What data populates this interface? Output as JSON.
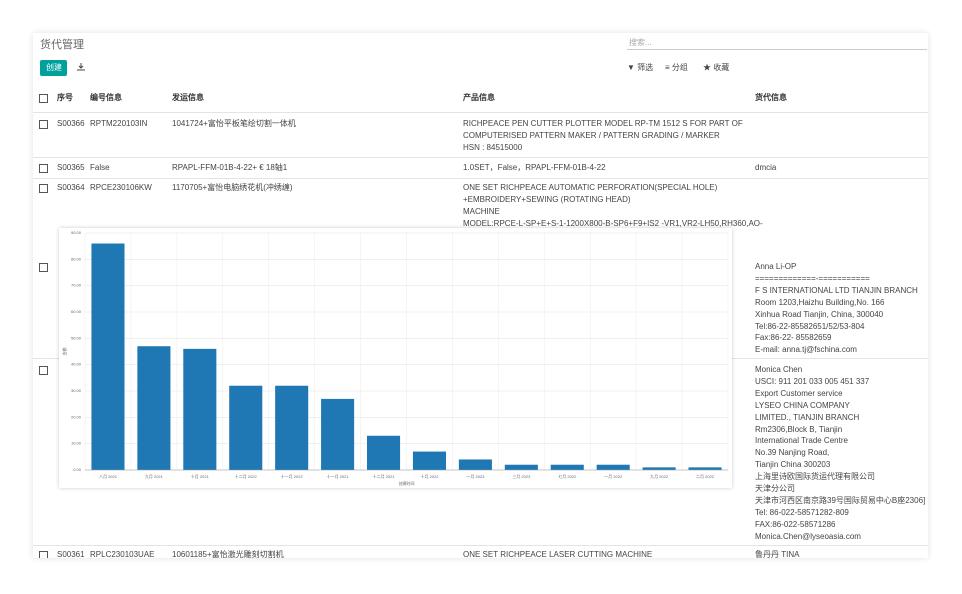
{
  "header": {
    "title": "货代管理",
    "search_placeholder": "搜索...",
    "create": "创建",
    "filter": "筛选",
    "group": "分组",
    "favorite": "收藏"
  },
  "table": {
    "columns": [
      "序号",
      "编号信息",
      "发运信息",
      "产品信息",
      "货代信息"
    ],
    "rows": [
      {
        "seq": "S00366",
        "code": "RPTM220103IN",
        "shipping": "1041724+富怡平板笔绘切割一体机",
        "product": [
          "RICHPEACE PEN CUTTER PLOTTER MODEL RP-TM 1512 S FOR PART OF",
          "COMPUTERISED PATTERN MAKER / PATTERN GRADING / MARKER",
          "HSN : 84515000"
        ],
        "forwarder": []
      },
      {
        "seq": "S00365",
        "code": "False",
        "shipping": "RPAPL-FFM-01B-4-22+ € 18轴1",
        "product": [
          "1.0SET，False，RPAPL-FFM-01B-4-22"
        ],
        "forwarder": [
          "dmcia"
        ]
      },
      {
        "seq": "S00364",
        "code": "RPCE230106KW",
        "shipping": "1170705+富怡电脑绣花机(冲绣缠)",
        "product": [
          "ONE SET RICHPEACE AUTOMATIC PERFORATION(SPECIAL HOLE)",
          "+EMBROIDERY+SEWING (ROTATING HEAD)",
          "MACHINE",
          "MODEL:RPCE-L-SP+E+S-1-1200X800-B-SP6+F9+IS2 -VR1,VR2-LH50,RH360,AO-"
        ],
        "forwarder": []
      },
      {
        "seq": "",
        "code": "",
        "shipping": "",
        "product": [],
        "forwarder": [
          "Anna Li-OP",
          "=============-===========",
          "F S INTERNATIONAL LTD TIANJIN BRANCH",
          "Room 1203,Haizhu Building,No. 166",
          "Xinhua Road Tianjin, China, 300040",
          "Tel:86-22-85582651/52/53-804",
          "Fax:86-22- 85582659",
          "E-mail: anna.tj@fschina.com"
        ]
      },
      {
        "seq": "",
        "code": "",
        "shipping": "",
        "product": [],
        "forwarder": [
          "Monica Chen",
          "USCI: 911 201 033 005 451 337",
          "Export Customer service",
          "LYSEO CHINA COMPANY",
          "LIMITED., TIANJIN BRANCH",
          "Rm2306,Block B, Tianjin",
          "International Trade Centre",
          "No.39 Nanjing Road,",
          "Tianjin China 300203",
          "上海里诗欧国际货运代理有限公司",
          "天津分公司",
          "天津市河西区南京路39号国际贸易中心B座2306]",
          "Tel: 86-022-58571282-809",
          "FAX:86-022-58571286",
          "Monica.Chen@lyseoasia.com"
        ]
      },
      {
        "seq": "S00361",
        "code": "RPLC230103UAE",
        "shipping": "10601185+富怡激光雕刻切割机",
        "product": [
          "ONE SET RICHPEACE LASER CUTTING MACHINE"
        ],
        "forwarder": [
          "鲁丹丹 TINA"
        ]
      }
    ]
  },
  "chart_data": {
    "type": "bar",
    "y_label": "金额",
    "x_label": "创建时间",
    "color": "#1f77b4",
    "categories": [
      "八月 2021",
      "九月 2021",
      "十月 2021",
      "十二月 2022",
      "十一月 2022",
      "十一月 2021",
      "十二月 2021",
      "十月 2022",
      "一月 2023",
      "三月 2023",
      "七月 2022",
      "一月 2022",
      "九月 2022",
      "二月 2022"
    ],
    "values": [
      86,
      47,
      46,
      32,
      32,
      27,
      13,
      7,
      4,
      2,
      2,
      2,
      1,
      1
    ],
    "ylim": [
      0,
      90
    ],
    "yticks": [
      {
        "value": 0,
        "label": "0.00"
      },
      {
        "value": 10,
        "label": "10.00"
      },
      {
        "value": 20,
        "label": "20.00"
      },
      {
        "value": 30,
        "label": "30.00"
      },
      {
        "value": 40,
        "label": "40.00"
      },
      {
        "value": 50,
        "label": "50.00"
      },
      {
        "value": 60,
        "label": "60.00"
      },
      {
        "value": 70,
        "label": "70.00"
      },
      {
        "value": 80,
        "label": "80.00"
      },
      {
        "value": 90,
        "label": "90.00"
      }
    ],
    "grid": true
  }
}
